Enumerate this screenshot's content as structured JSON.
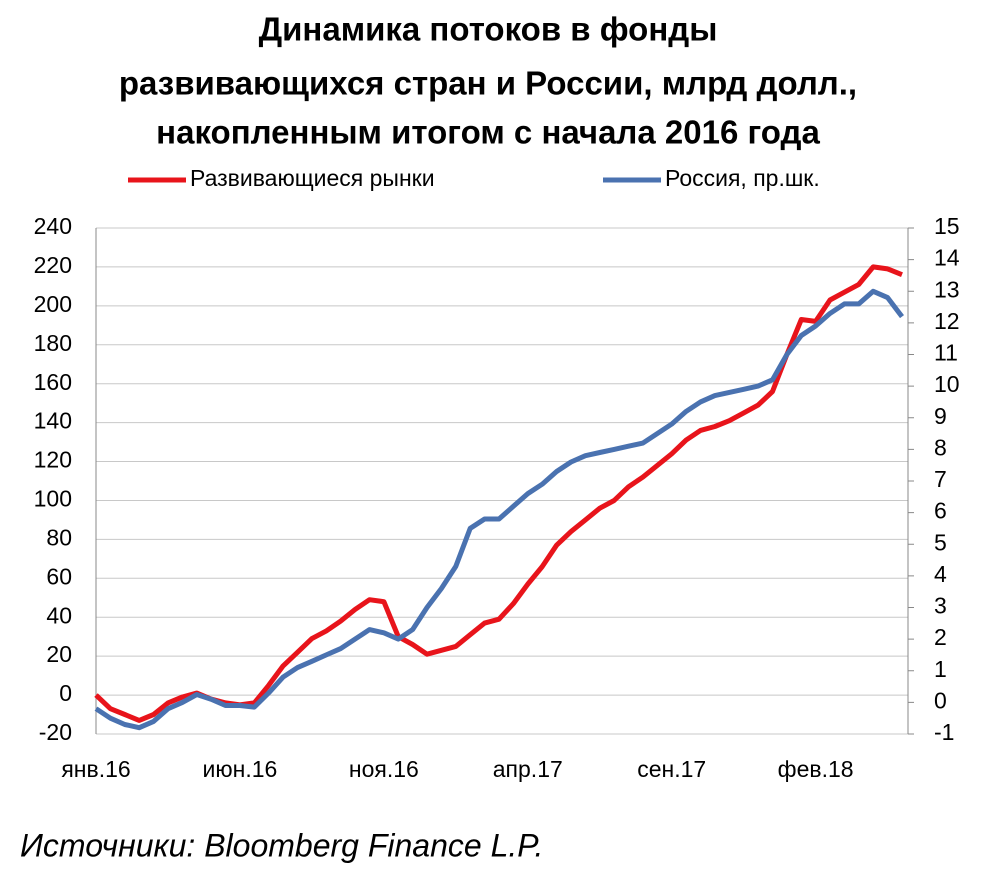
{
  "chart_data": {
    "type": "line",
    "title": [
      "Динамика потоков в фонды",
      "развивающихся стран и России, млрд долл.,",
      "накопленным итогом с начала 2016 года"
    ],
    "categories": [
      "янв.16",
      null,
      null,
      null,
      null,
      null,
      null,
      null,
      null,
      null,
      "июн.16",
      null,
      null,
      null,
      null,
      null,
      null,
      null,
      null,
      null,
      "ноя.16",
      null,
      null,
      null,
      null,
      null,
      null,
      null,
      null,
      null,
      "апр.17",
      null,
      null,
      null,
      null,
      null,
      null,
      null,
      null,
      null,
      "сен.17",
      null,
      null,
      null,
      null,
      null,
      null,
      null,
      null,
      null,
      "фев.18",
      null,
      null,
      null,
      null,
      null,
      null
    ],
    "series": [
      {
        "name": "Развивающиеся рынки",
        "color": "#e8141b",
        "values": [
          0,
          -7,
          -10,
          -13,
          -10,
          -4,
          -1,
          1,
          -2,
          -4,
          -5,
          -4,
          5,
          15,
          22,
          29,
          33,
          38,
          44,
          49,
          48,
          30,
          26,
          21,
          23,
          25,
          31,
          37,
          39,
          47,
          57,
          66,
          77,
          84,
          90,
          96,
          100,
          107,
          112,
          118,
          124,
          131,
          136,
          138,
          141,
          145,
          149,
          156,
          175,
          193,
          192,
          203,
          207,
          211,
          220,
          219,
          216
        ]
      },
      {
        "name": "Россия, пр.шк.",
        "color": "#4a72b0",
        "axis": "y2",
        "values": [
          -0.2,
          -0.5,
          -0.7,
          -0.8,
          -0.6,
          -0.2,
          0.0,
          0.25,
          0.1,
          -0.1,
          -0.1,
          -0.15,
          0.3,
          0.8,
          1.1,
          1.3,
          1.5,
          1.7,
          2.0,
          2.3,
          2.2,
          2.0,
          2.3,
          3.0,
          3.6,
          4.3,
          5.5,
          5.8,
          5.8,
          6.2,
          6.6,
          6.9,
          7.3,
          7.6,
          7.8,
          7.9,
          8.0,
          8.1,
          8.2,
          8.5,
          8.8,
          9.2,
          9.5,
          9.7,
          9.8,
          9.9,
          10.0,
          10.2,
          11.0,
          11.6,
          11.9,
          12.3,
          12.6,
          12.6,
          13.0,
          12.8,
          12.2
        ]
      }
    ],
    "ylim": [
      -20,
      240
    ],
    "yticks": [
      -20,
      0,
      20,
      40,
      60,
      80,
      100,
      120,
      140,
      160,
      180,
      200,
      220,
      240
    ],
    "y2lim": [
      -1,
      15
    ],
    "y2ticks": [
      -1,
      0,
      1,
      2,
      3,
      4,
      5,
      6,
      7,
      8,
      9,
      10,
      11,
      12,
      13,
      14,
      15
    ],
    "grid": true,
    "source": "Источники: Bloomberg Finance L.P."
  }
}
